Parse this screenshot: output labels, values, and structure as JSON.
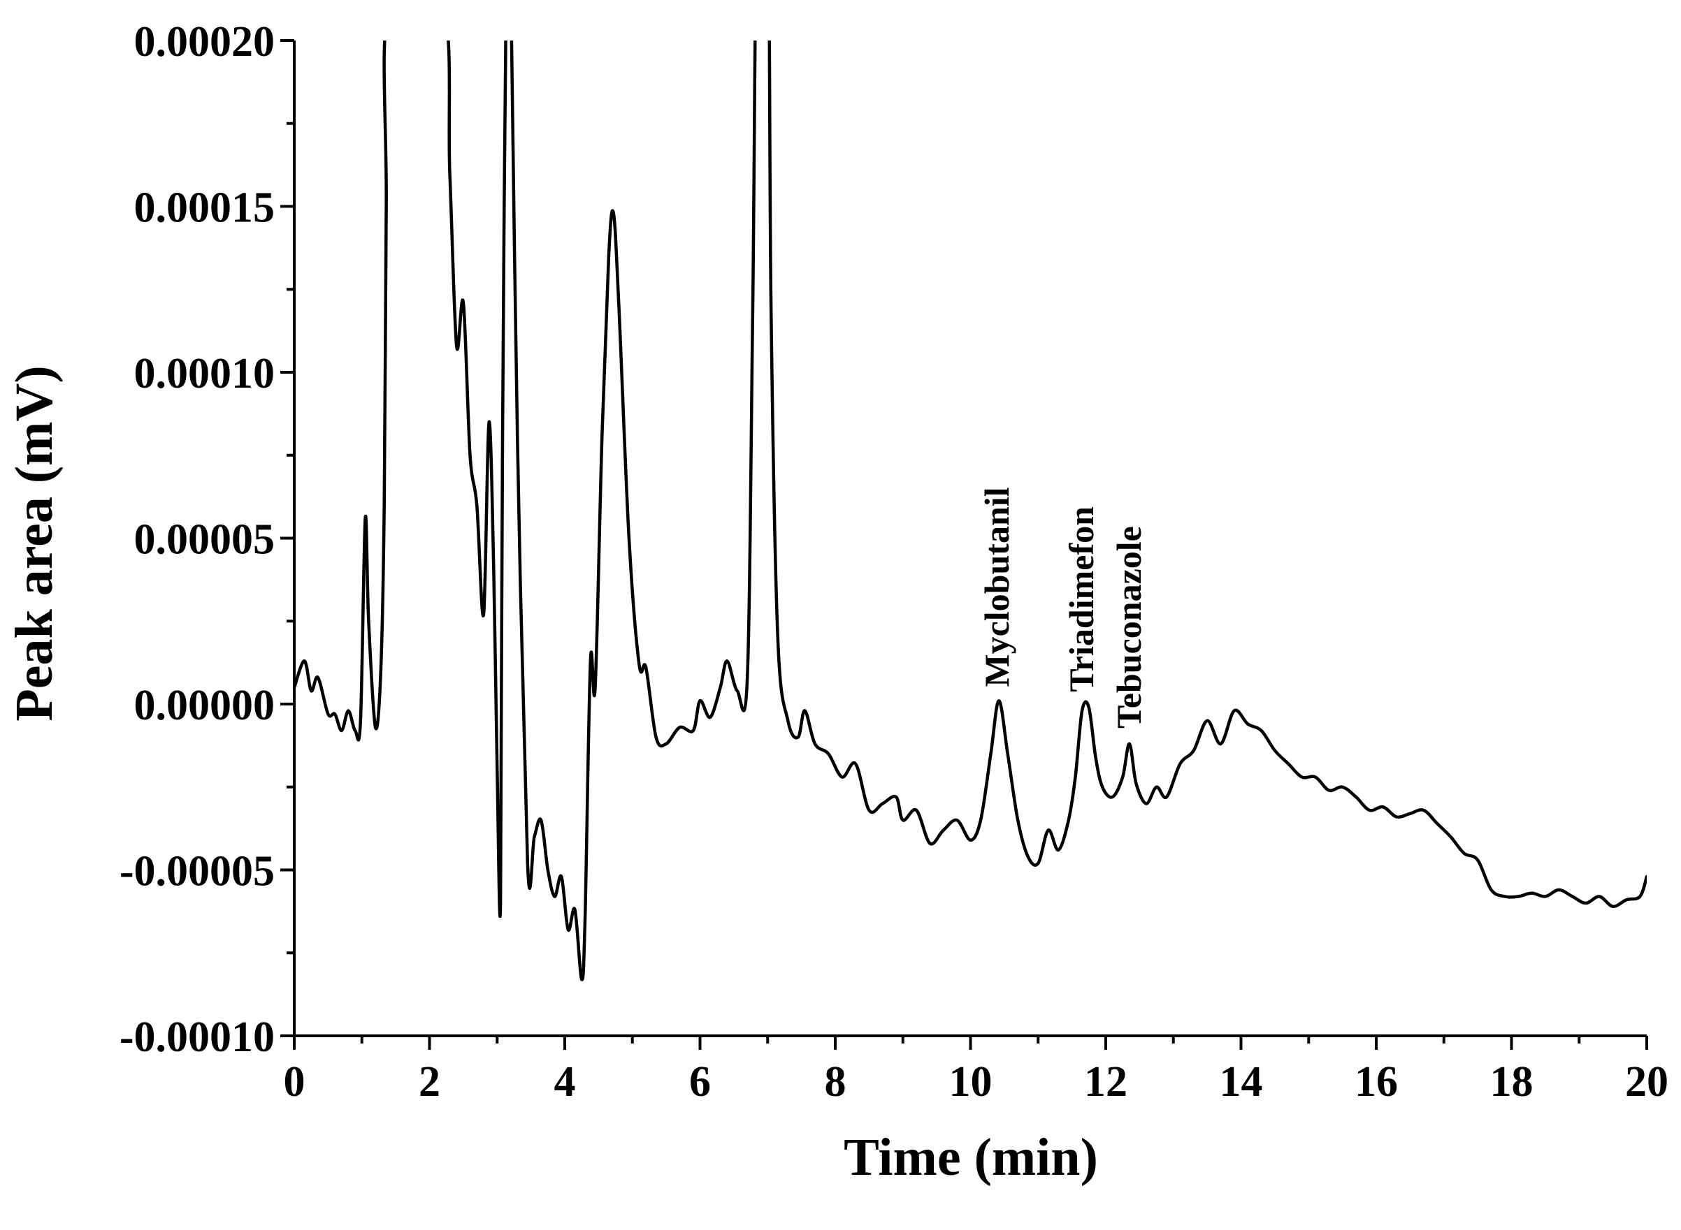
{
  "chart_data": {
    "type": "line",
    "title": "",
    "xlabel": "Time (min)",
    "ylabel": "Peak area (mV)",
    "xlim": [
      0,
      20
    ],
    "ylim": [
      -0.0001,
      0.0002
    ],
    "x_ticks": [
      "0",
      "2",
      "4",
      "6",
      "8",
      "10",
      "12",
      "14",
      "16",
      "18",
      "20"
    ],
    "y_ticks": [
      "-0.00010",
      "-0.00005",
      "0.00000",
      "0.00005",
      "0.00010",
      "0.00015",
      "0.00020"
    ],
    "grid": false,
    "annotations": [
      {
        "text": "Myclobutanil",
        "x": 10.4,
        "y": 5e-07
      },
      {
        "text": "Triadimefon",
        "x": 11.65,
        "y": -1e-06
      },
      {
        "text": "Tebuconazole",
        "x": 12.35,
        "y": -1.2e-05
      }
    ],
    "series": [
      {
        "color": "#000000",
        "x": [
          0.0,
          0.15,
          0.25,
          0.35,
          0.5,
          0.6,
          0.7,
          0.8,
          0.9,
          0.98,
          1.05,
          1.1,
          1.2,
          1.28,
          1.33,
          1.36,
          1.4,
          2.2,
          2.3,
          2.4,
          2.5,
          2.6,
          2.7,
          2.8,
          2.88,
          2.95,
          3.0,
          3.05,
          3.08,
          3.15,
          3.2,
          3.3,
          3.45,
          3.55,
          3.65,
          3.75,
          3.85,
          3.95,
          4.05,
          4.15,
          4.25,
          4.3,
          4.38,
          4.45,
          4.55,
          4.65,
          4.72,
          4.8,
          4.95,
          5.1,
          5.2,
          5.35,
          5.5,
          5.7,
          5.9,
          6.0,
          6.15,
          6.3,
          6.4,
          6.55,
          6.7,
          6.78,
          6.85,
          7.0,
          7.05,
          7.15,
          7.3,
          7.45,
          7.55,
          7.7,
          7.9,
          8.1,
          8.3,
          8.5,
          8.7,
          8.9,
          9.0,
          9.2,
          9.4,
          9.6,
          9.8,
          10.0,
          10.15,
          10.3,
          10.42,
          10.55,
          10.7,
          10.85,
          11.0,
          11.15,
          11.3,
          11.45,
          11.55,
          11.65,
          11.75,
          11.85,
          11.95,
          12.1,
          12.25,
          12.35,
          12.45,
          12.6,
          12.75,
          12.9,
          13.1,
          13.3,
          13.5,
          13.7,
          13.9,
          14.1,
          14.3,
          14.5,
          14.7,
          14.9,
          15.1,
          15.3,
          15.5,
          15.7,
          15.9,
          16.1,
          16.3,
          16.5,
          16.7,
          16.9,
          17.1,
          17.3,
          17.5,
          17.7,
          17.9,
          18.1,
          18.3,
          18.5,
          18.7,
          18.9,
          19.1,
          19.3,
          19.5,
          19.7,
          19.9,
          20.0
        ],
        "y": [
          5e-06,
          1.3e-05,
          4e-06,
          8e-06,
          -3e-06,
          -3e-06,
          -8e-06,
          -2e-06,
          -8e-06,
          -5e-06,
          5.6e-05,
          2.5e-05,
          -7e-06,
          1e-05,
          6e-05,
          0.00015,
          0.00021,
          0.00021,
          0.00016,
          0.000108,
          0.000121,
          7.5e-05,
          6e-05,
          2.7e-05,
          8.5e-05,
          4e-05,
          -2e-05,
          -6e-05,
          8e-05,
          0.00025,
          0.00022,
          8e-05,
          -4.8e-05,
          -4e-05,
          -3.5e-05,
          -5e-05,
          -5.8e-05,
          -5.2e-05,
          -6.8e-05,
          -6.2e-05,
          -8.3e-05,
          -6.5e-05,
          1.3e-05,
          5e-06,
          8e-05,
          0.000135,
          0.000148,
          0.00012,
          5e-05,
          1.2e-05,
          1.1e-05,
          -1e-05,
          -1.2e-05,
          -7e-06,
          -8e-06,
          1e-06,
          -4e-06,
          5e-06,
          1.3e-05,
          4e-06,
          8e-06,
          0.00012,
          0.00025,
          0.00025,
          0.00012,
          2e-05,
          -5e-06,
          -1e-05,
          -2e-06,
          -1.2e-05,
          -1.5e-05,
          -2.2e-05,
          -1.8e-05,
          -3.2e-05,
          -3e-05,
          -2.8e-05,
          -3.5e-05,
          -3.2e-05,
          -4.2e-05,
          -3.8e-05,
          -3.5e-05,
          -4.1e-05,
          -3.5e-05,
          -1.5e-05,
          1e-06,
          -1.5e-05,
          -3.5e-05,
          -4.6e-05,
          -4.8e-05,
          -3.8e-05,
          -4.4e-05,
          -3.5e-05,
          -2.2e-05,
          -2e-06,
          -1e-06,
          -1.6e-05,
          -2.5e-05,
          -2.8e-05,
          -2.2e-05,
          -1.2e-05,
          -2.4e-05,
          -3e-05,
          -2.5e-05,
          -2.8e-05,
          -1.8e-05,
          -1.4e-05,
          -5e-06,
          -1.2e-05,
          -2e-06,
          -6e-06,
          -8e-06,
          -1.4e-05,
          -1.8e-05,
          -2.2e-05,
          -2.2e-05,
          -2.6e-05,
          -2.5e-05,
          -2.8e-05,
          -3.2e-05,
          -3.1e-05,
          -3.4e-05,
          -3.3e-05,
          -3.2e-05,
          -3.6e-05,
          -4e-05,
          -4.5e-05,
          -4.7e-05,
          -5.6e-05,
          -5.8e-05,
          -5.8e-05,
          -5.7e-05,
          -5.8e-05,
          -5.6e-05,
          -5.8e-05,
          -6e-05,
          -5.8e-05,
          -6.1e-05,
          -5.9e-05,
          -5.8e-05,
          -5.2e-05
        ]
      }
    ]
  }
}
